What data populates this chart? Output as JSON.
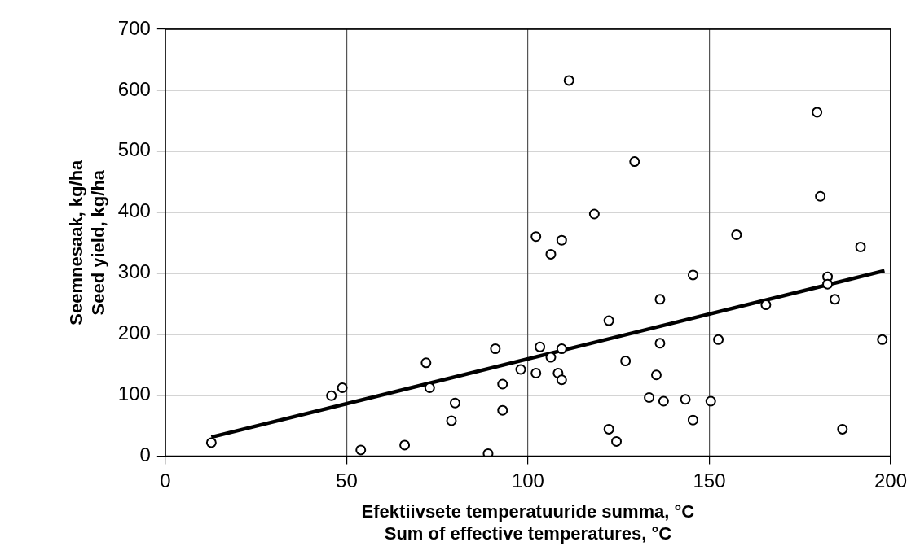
{
  "chart_data": {
    "type": "scatter",
    "xlabel": "Efektiivsete temperatuuride summa, °C\nSum of effective temperatures, °C",
    "ylabel": "Seemnesaak, kg/ha\nSeed yield, kg/ha",
    "xlim": [
      0,
      200
    ],
    "xticks": [
      0,
      50,
      100,
      150,
      200
    ],
    "ylim": [
      0,
      700
    ],
    "yticks": [
      0,
      100,
      200,
      300,
      400,
      500,
      600,
      700
    ],
    "grid": true,
    "legend": false,
    "series": [
      {
        "type": "scatter",
        "marker": "circle",
        "color": "#000000",
        "x": [
          12.7,
          45.8,
          48.8,
          53.9,
          66.0,
          71.9,
          72.9,
          79.9,
          78.9,
          93.0,
          93.0,
          91.0,
          89.0,
          98.0,
          111.3,
          179.7,
          129.4,
          180.6,
          118.3,
          102.2,
          109.3,
          106.3,
          157.5,
          191.7,
          145.5,
          182.6,
          182.6,
          136.4,
          184.6,
          165.6,
          122.3,
          152.5,
          197.7,
          136.4,
          103.3,
          109.3,
          106.3,
          126.9,
          102.2,
          108.3,
          109.3,
          135.4,
          133.4,
          137.4,
          143.4,
          150.4,
          145.5,
          122.3,
          124.4,
          186.7
        ],
        "values": [
          22,
          99,
          112,
          10,
          18,
          153,
          112,
          87,
          58,
          75,
          118,
          176,
          4,
          142,
          616,
          564,
          483,
          426,
          397,
          360,
          354,
          331,
          363,
          343,
          297,
          294,
          282,
          257,
          257,
          248,
          222,
          191,
          191,
          185,
          179,
          176,
          162,
          156,
          136,
          136,
          125,
          133,
          96,
          90,
          93,
          90,
          59,
          44,
          24,
          44
        ]
      },
      {
        "type": "line",
        "marker": "none",
        "line_style": "solid",
        "color": "#000000",
        "x": [
          12.7,
          198.3
        ],
        "values": [
          31,
          304
        ]
      }
    ]
  }
}
